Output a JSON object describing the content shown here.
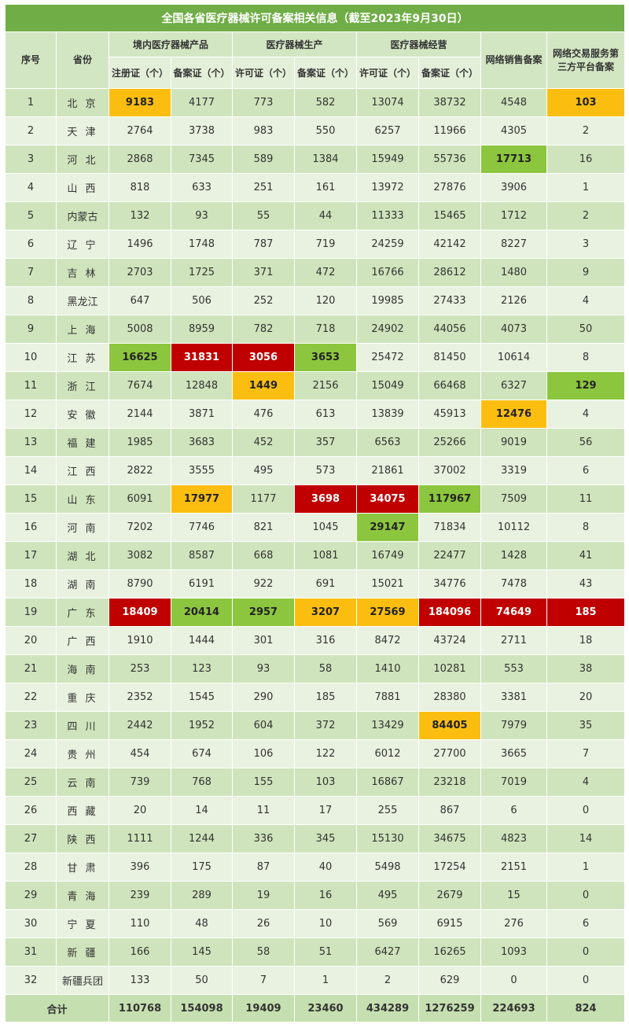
{
  "title": "全国各省医疗器械许可备案相关信息（截至2023年9月30日）",
  "headers": {
    "index": "序号",
    "province": "省份",
    "group_products": "境内医疗器械产品",
    "group_production": "医疗器械生产",
    "group_operation": "医疗器械经营",
    "online_sales": "网络销售备案",
    "platform": "网络交易服务第三方平台备案",
    "sub": [
      "注册证（个）",
      "备案证（个）",
      "许可证（个）",
      "备案证（个）",
      "许可证（个）",
      "备案证（个）"
    ]
  },
  "colors": {
    "orange": "#fbbe10",
    "green": "#8cc63e",
    "red": "#c00000",
    "title_bg": "#70ad47"
  },
  "rows": [
    {
      "no": "1",
      "province": "北 京",
      "values": [
        "9183",
        "4177",
        "773",
        "582",
        "13074",
        "38732",
        "4548",
        "103"
      ],
      "highlight": {
        "0": "orange",
        "7": "orange"
      }
    },
    {
      "no": "2",
      "province": "天 津",
      "values": [
        "2764",
        "3738",
        "983",
        "550",
        "6257",
        "11966",
        "4305",
        "2"
      ]
    },
    {
      "no": "3",
      "province": "河 北",
      "values": [
        "2868",
        "7345",
        "589",
        "1384",
        "15949",
        "55736",
        "17713",
        "16"
      ],
      "highlight": {
        "6": "green"
      }
    },
    {
      "no": "4",
      "province": "山 西",
      "values": [
        "818",
        "633",
        "251",
        "161",
        "13972",
        "27876",
        "3906",
        "1"
      ]
    },
    {
      "no": "5",
      "province": "内蒙古",
      "values": [
        "132",
        "93",
        "55",
        "44",
        "11333",
        "15465",
        "1712",
        "2"
      ]
    },
    {
      "no": "6",
      "province": "辽 宁",
      "values": [
        "1496",
        "1748",
        "787",
        "719",
        "24259",
        "42142",
        "8227",
        "3"
      ]
    },
    {
      "no": "7",
      "province": "吉 林",
      "values": [
        "2703",
        "1725",
        "371",
        "472",
        "16766",
        "28612",
        "1480",
        "9"
      ]
    },
    {
      "no": "8",
      "province": "黑龙江",
      "values": [
        "647",
        "506",
        "252",
        "120",
        "19985",
        "27433",
        "2126",
        "4"
      ]
    },
    {
      "no": "9",
      "province": "上 海",
      "values": [
        "5008",
        "8959",
        "782",
        "718",
        "24902",
        "44056",
        "4073",
        "50"
      ]
    },
    {
      "no": "10",
      "province": "江 苏",
      "values": [
        "16625",
        "31831",
        "3056",
        "3653",
        "25472",
        "81450",
        "10614",
        "8"
      ],
      "highlight": {
        "0": "green",
        "1": "red",
        "2": "red",
        "3": "green"
      }
    },
    {
      "no": "11",
      "province": "浙 江",
      "values": [
        "7674",
        "12848",
        "1449",
        "2156",
        "15049",
        "66468",
        "6327",
        "129"
      ],
      "highlight": {
        "2": "orange",
        "7": "green"
      }
    },
    {
      "no": "12",
      "province": "安 徽",
      "values": [
        "2144",
        "3871",
        "476",
        "613",
        "13839",
        "45913",
        "12476",
        "4"
      ],
      "highlight": {
        "6": "orange"
      }
    },
    {
      "no": "13",
      "province": "福 建",
      "values": [
        "1985",
        "3683",
        "452",
        "357",
        "6563",
        "25266",
        "9019",
        "56"
      ]
    },
    {
      "no": "14",
      "province": "江 西",
      "values": [
        "2822",
        "3555",
        "495",
        "573",
        "21861",
        "37002",
        "3319",
        "6"
      ]
    },
    {
      "no": "15",
      "province": "山 东",
      "values": [
        "6091",
        "17977",
        "1177",
        "3698",
        "34075",
        "117967",
        "7509",
        "11"
      ],
      "highlight": {
        "1": "orange",
        "3": "red",
        "4": "red",
        "5": "green"
      }
    },
    {
      "no": "16",
      "province": "河 南",
      "values": [
        "7202",
        "7746",
        "821",
        "1045",
        "29147",
        "71834",
        "10112",
        "8"
      ],
      "highlight": {
        "4": "green"
      }
    },
    {
      "no": "17",
      "province": "湖 北",
      "values": [
        "3082",
        "8587",
        "668",
        "1081",
        "16749",
        "22477",
        "1428",
        "41"
      ]
    },
    {
      "no": "18",
      "province": "湖 南",
      "values": [
        "8790",
        "6191",
        "922",
        "691",
        "15021",
        "34776",
        "7478",
        "43"
      ]
    },
    {
      "no": "19",
      "province": "广 东",
      "values": [
        "18409",
        "20414",
        "2957",
        "3207",
        "27569",
        "184096",
        "74649",
        "185"
      ],
      "highlight": {
        "0": "red",
        "1": "green",
        "2": "green",
        "3": "orange",
        "4": "orange",
        "5": "red",
        "6": "red",
        "7": "red"
      }
    },
    {
      "no": "20",
      "province": "广 西",
      "values": [
        "1910",
        "1444",
        "301",
        "316",
        "8472",
        "43724",
        "2711",
        "18"
      ]
    },
    {
      "no": "21",
      "province": "海 南",
      "values": [
        "253",
        "123",
        "93",
        "58",
        "1410",
        "10281",
        "553",
        "38"
      ]
    },
    {
      "no": "22",
      "province": "重 庆",
      "values": [
        "2352",
        "1545",
        "290",
        "185",
        "7881",
        "28380",
        "3381",
        "20"
      ]
    },
    {
      "no": "23",
      "province": "四 川",
      "values": [
        "2442",
        "1952",
        "604",
        "372",
        "13429",
        "84405",
        "7979",
        "35"
      ],
      "highlight": {
        "5": "orange"
      }
    },
    {
      "no": "24",
      "province": "贵 州",
      "values": [
        "454",
        "674",
        "106",
        "122",
        "6012",
        "27700",
        "3665",
        "7"
      ]
    },
    {
      "no": "25",
      "province": "云 南",
      "values": [
        "739",
        "768",
        "155",
        "103",
        "16867",
        "23218",
        "7019",
        "4"
      ]
    },
    {
      "no": "26",
      "province": "西 藏",
      "values": [
        "20",
        "14",
        "11",
        "17",
        "255",
        "867",
        "6",
        "0"
      ]
    },
    {
      "no": "27",
      "province": "陕 西",
      "values": [
        "1111",
        "1244",
        "336",
        "345",
        "15130",
        "34675",
        "4823",
        "14"
      ]
    },
    {
      "no": "28",
      "province": "甘 肃",
      "values": [
        "396",
        "175",
        "87",
        "40",
        "5498",
        "17254",
        "2151",
        "1"
      ]
    },
    {
      "no": "29",
      "province": "青 海",
      "values": [
        "239",
        "289",
        "19",
        "16",
        "495",
        "2679",
        "15",
        "0"
      ]
    },
    {
      "no": "30",
      "province": "宁 夏",
      "values": [
        "110",
        "48",
        "26",
        "10",
        "569",
        "6915",
        "276",
        "6"
      ]
    },
    {
      "no": "31",
      "province": "新 疆",
      "values": [
        "166",
        "145",
        "58",
        "51",
        "6427",
        "16265",
        "1093",
        "0"
      ]
    },
    {
      "no": "32",
      "province": "新疆兵团",
      "values": [
        "133",
        "50",
        "7",
        "1",
        "2",
        "629",
        "0",
        "0"
      ]
    }
  ],
  "total": {
    "label": "合计",
    "values": [
      "110768",
      "154098",
      "19409",
      "23460",
      "434289",
      "1276259",
      "224693",
      "824"
    ]
  }
}
